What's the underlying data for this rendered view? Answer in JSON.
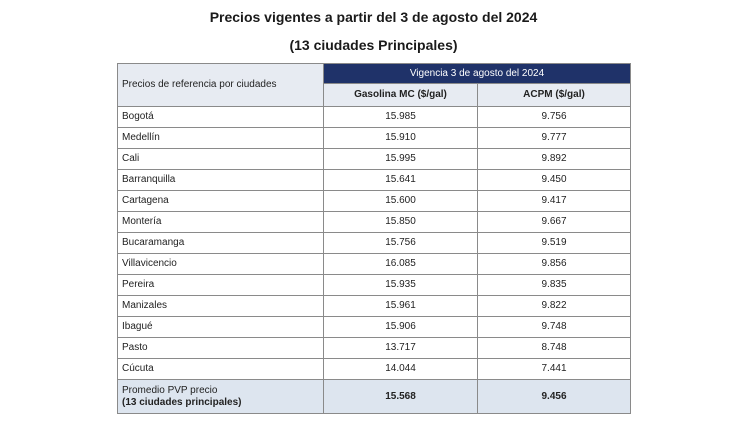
{
  "title": "Precios vigentes a partir del 3 de agosto del 2024",
  "subtitle": "(13 ciudades Principales)",
  "table": {
    "ref_header": "Precios de referencia por ciudades",
    "group_header": "Vigencia 3 de agosto del 2024",
    "col_gasolina": "Gasolina MC ($/gal)",
    "col_acpm": "ACPM ($/gal)",
    "rows": [
      {
        "city": "Bogotá",
        "gasolina": "15.985",
        "acpm": "9.756"
      },
      {
        "city": "Medellín",
        "gasolina": "15.910",
        "acpm": "9.777"
      },
      {
        "city": "Cali",
        "gasolina": "15.995",
        "acpm": "9.892"
      },
      {
        "city": "Barranquilla",
        "gasolina": "15.641",
        "acpm": "9.450"
      },
      {
        "city": "Cartagena",
        "gasolina": "15.600",
        "acpm": "9.417"
      },
      {
        "city": "Montería",
        "gasolina": "15.850",
        "acpm": "9.667"
      },
      {
        "city": "Bucaramanga",
        "gasolina": "15.756",
        "acpm": "9.519"
      },
      {
        "city": "Villavicencio",
        "gasolina": "16.085",
        "acpm": "9.856"
      },
      {
        "city": "Pereira",
        "gasolina": "15.935",
        "acpm": "9.835"
      },
      {
        "city": "Manizales",
        "gasolina": "15.961",
        "acpm": "9.822"
      },
      {
        "city": "Ibagué",
        "gasolina": "15.906",
        "acpm": "9.748"
      },
      {
        "city": "Pasto",
        "gasolina": "13.717",
        "acpm": "8.748"
      },
      {
        "city": "Cúcuta",
        "gasolina": "14.044",
        "acpm": "7.441"
      }
    ],
    "total": {
      "label_line1": "Promedio PVP precio",
      "label_line2": "(13 ciudades principales)",
      "gasolina": "15.568",
      "acpm": "9.456"
    }
  },
  "colors": {
    "header_navy": "#1f3269",
    "header_light": "#e7ebf2",
    "total_row": "#dde5ef"
  }
}
